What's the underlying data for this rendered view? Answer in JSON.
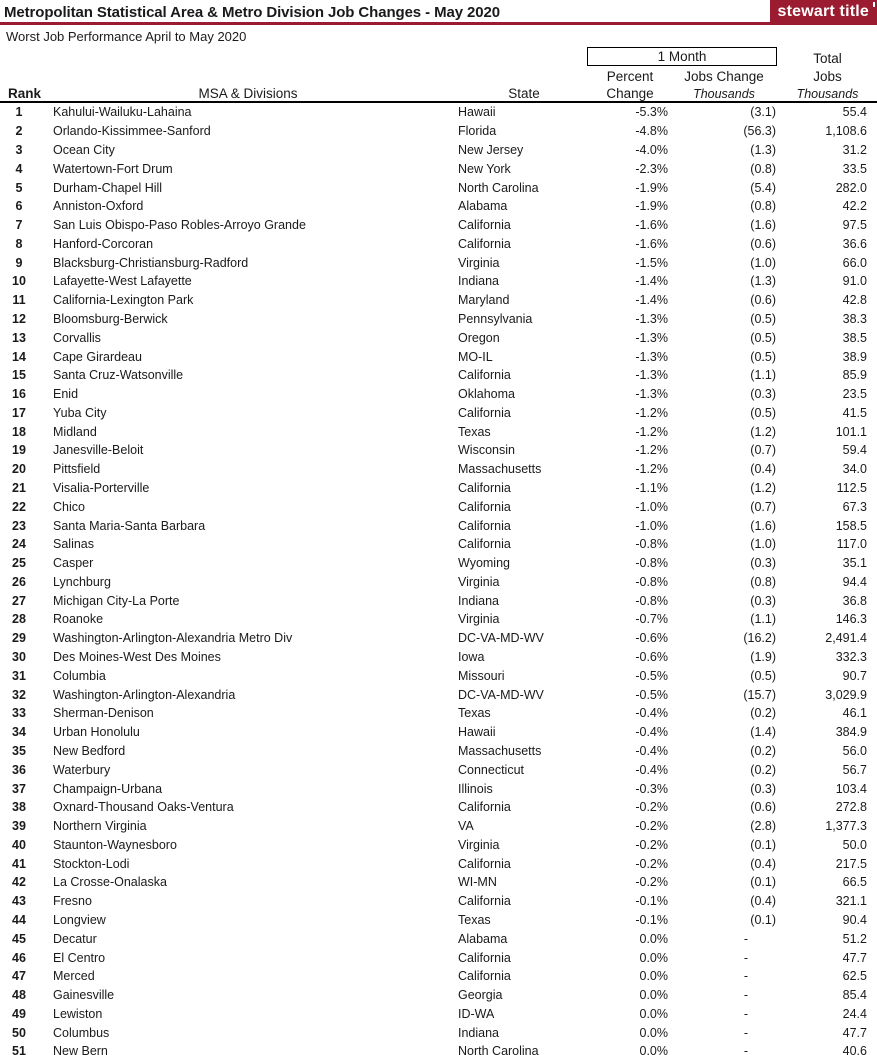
{
  "header": {
    "title": "Metropolitan Statistical Area & Metro Division Job Changes - May 2020",
    "logo_text": "stewart title",
    "subtitle": "Worst Job Performance April to May 2020"
  },
  "colors": {
    "brand_maroon": "#9B1B30",
    "text": "#1a1a1a"
  },
  "table": {
    "group_header": {
      "one_month": "1 Month",
      "total_top": "Total"
    },
    "column_headers": {
      "rank": "Rank",
      "msa": "MSA & Divisions",
      "state": "State",
      "percent_top": "Percent",
      "percent_bottom": "Change",
      "jobs_top": "Jobs Change",
      "jobs_unit": "Thousands",
      "total_mid": "Jobs",
      "total_unit": "Thousands"
    },
    "rows": [
      [
        "1",
        "Kahului-Wailuku-Lahaina",
        "Hawaii",
        "-5.3%",
        "(3.1)",
        "55.4"
      ],
      [
        "2",
        "Orlando-Kissimmee-Sanford",
        "Florida",
        "-4.8%",
        "(56.3)",
        "1,108.6"
      ],
      [
        "3",
        "Ocean City",
        "New Jersey",
        "-4.0%",
        "(1.3)",
        "31.2"
      ],
      [
        "4",
        "Watertown-Fort Drum",
        "New York",
        "-2.3%",
        "(0.8)",
        "33.5"
      ],
      [
        "5",
        "Durham-Chapel Hill",
        "North Carolina",
        "-1.9%",
        "(5.4)",
        "282.0"
      ],
      [
        "6",
        "Anniston-Oxford",
        "Alabama",
        "-1.9%",
        "(0.8)",
        "42.2"
      ],
      [
        "7",
        "San Luis Obispo-Paso Robles-Arroyo Grande",
        "California",
        "-1.6%",
        "(1.6)",
        "97.5"
      ],
      [
        "8",
        "Hanford-Corcoran",
        "California",
        "-1.6%",
        "(0.6)",
        "36.6"
      ],
      [
        "9",
        "Blacksburg-Christiansburg-Radford",
        "Virginia",
        "-1.5%",
        "(1.0)",
        "66.0"
      ],
      [
        "10",
        "Lafayette-West Lafayette",
        "Indiana",
        "-1.4%",
        "(1.3)",
        "91.0"
      ],
      [
        "11",
        "California-Lexington Park",
        "Maryland",
        "-1.4%",
        "(0.6)",
        "42.8"
      ],
      [
        "12",
        "Bloomsburg-Berwick",
        "Pennsylvania",
        "-1.3%",
        "(0.5)",
        "38.3"
      ],
      [
        "13",
        "Corvallis",
        "Oregon",
        "-1.3%",
        "(0.5)",
        "38.5"
      ],
      [
        "14",
        "Cape Girardeau",
        "MO-IL",
        "-1.3%",
        "(0.5)",
        "38.9"
      ],
      [
        "15",
        "Santa Cruz-Watsonville",
        "California",
        "-1.3%",
        "(1.1)",
        "85.9"
      ],
      [
        "16",
        "Enid",
        "Oklahoma",
        "-1.3%",
        "(0.3)",
        "23.5"
      ],
      [
        "17",
        "Yuba City",
        "California",
        "-1.2%",
        "(0.5)",
        "41.5"
      ],
      [
        "18",
        "Midland",
        "Texas",
        "-1.2%",
        "(1.2)",
        "101.1"
      ],
      [
        "19",
        "Janesville-Beloit",
        "Wisconsin",
        "-1.2%",
        "(0.7)",
        "59.4"
      ],
      [
        "20",
        "Pittsfield",
        "Massachusetts",
        "-1.2%",
        "(0.4)",
        "34.0"
      ],
      [
        "21",
        "Visalia-Porterville",
        "California",
        "-1.1%",
        "(1.2)",
        "112.5"
      ],
      [
        "22",
        "Chico",
        "California",
        "-1.0%",
        "(0.7)",
        "67.3"
      ],
      [
        "23",
        "Santa Maria-Santa Barbara",
        "California",
        "-1.0%",
        "(1.6)",
        "158.5"
      ],
      [
        "24",
        "Salinas",
        "California",
        "-0.8%",
        "(1.0)",
        "117.0"
      ],
      [
        "25",
        "Casper",
        "Wyoming",
        "-0.8%",
        "(0.3)",
        "35.1"
      ],
      [
        "26",
        "Lynchburg",
        "Virginia",
        "-0.8%",
        "(0.8)",
        "94.4"
      ],
      [
        "27",
        "Michigan City-La Porte",
        "Indiana",
        "-0.8%",
        "(0.3)",
        "36.8"
      ],
      [
        "28",
        "Roanoke",
        "Virginia",
        "-0.7%",
        "(1.1)",
        "146.3"
      ],
      [
        "29",
        "Washington-Arlington-Alexandria Metro Div",
        "DC-VA-MD-WV",
        "-0.6%",
        "(16.2)",
        "2,491.4"
      ],
      [
        "30",
        "Des Moines-West Des Moines",
        "Iowa",
        "-0.6%",
        "(1.9)",
        "332.3"
      ],
      [
        "31",
        "Columbia",
        "Missouri",
        "-0.5%",
        "(0.5)",
        "90.7"
      ],
      [
        "32",
        "Washington-Arlington-Alexandria",
        "DC-VA-MD-WV",
        "-0.5%",
        "(15.7)",
        "3,029.9"
      ],
      [
        "33",
        "Sherman-Denison",
        "Texas",
        "-0.4%",
        "(0.2)",
        "46.1"
      ],
      [
        "34",
        "Urban Honolulu",
        "Hawaii",
        "-0.4%",
        "(1.4)",
        "384.9"
      ],
      [
        "35",
        "New Bedford",
        "Massachusetts",
        "-0.4%",
        "(0.2)",
        "56.0"
      ],
      [
        "36",
        "Waterbury",
        "Connecticut",
        "-0.4%",
        "(0.2)",
        "56.7"
      ],
      [
        "37",
        "Champaign-Urbana",
        "Illinois",
        "-0.3%",
        "(0.3)",
        "103.4"
      ],
      [
        "38",
        "Oxnard-Thousand Oaks-Ventura",
        "California",
        "-0.2%",
        "(0.6)",
        "272.8"
      ],
      [
        "39",
        "Northern Virginia",
        "VA",
        "-0.2%",
        "(2.8)",
        "1,377.3"
      ],
      [
        "40",
        "Staunton-Waynesboro",
        "Virginia",
        "-0.2%",
        "(0.1)",
        "50.0"
      ],
      [
        "41",
        "Stockton-Lodi",
        "California",
        "-0.2%",
        "(0.4)",
        "217.5"
      ],
      [
        "42",
        "La Crosse-Onalaska",
        "WI-MN",
        "-0.2%",
        "(0.1)",
        "66.5"
      ],
      [
        "43",
        "Fresno",
        "California",
        "-0.1%",
        "(0.4)",
        "321.1"
      ],
      [
        "44",
        "Longview",
        "Texas",
        "-0.1%",
        "(0.1)",
        "90.4"
      ],
      [
        "45",
        "Decatur",
        "Alabama",
        "0.0%",
        "-",
        "51.2"
      ],
      [
        "46",
        "El Centro",
        "California",
        "0.0%",
        "-",
        "47.7"
      ],
      [
        "47",
        "Merced",
        "California",
        "0.0%",
        "-",
        "62.5"
      ],
      [
        "48",
        "Gainesville",
        "Georgia",
        "0.0%",
        "-",
        "85.4"
      ],
      [
        "49",
        "Lewiston",
        "ID-WA",
        "0.0%",
        "-",
        "24.4"
      ],
      [
        "50",
        "Columbus",
        "Indiana",
        "0.0%",
        "-",
        "47.7"
      ],
      [
        "51",
        "New Bern",
        "North Carolina",
        "0.0%",
        "-",
        "40.6"
      ]
    ]
  }
}
